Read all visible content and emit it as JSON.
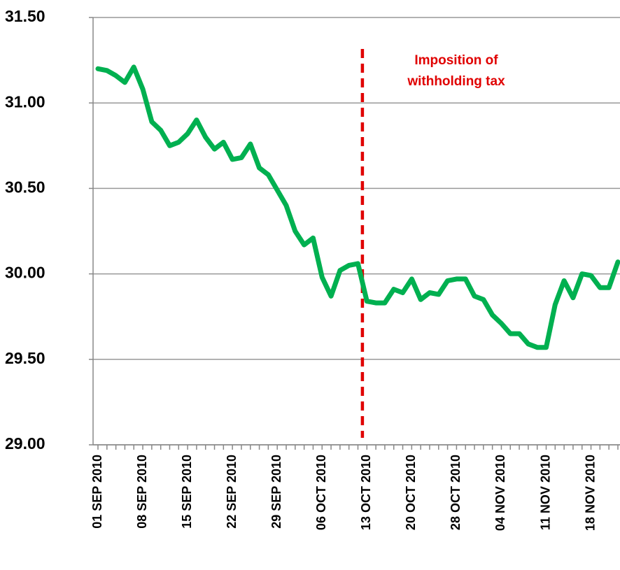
{
  "chart_data": {
    "type": "line",
    "categories": [
      "01 SEP 2010",
      null,
      null,
      null,
      null,
      "08 SEP 2010",
      null,
      null,
      null,
      null,
      "15 SEP 2010",
      null,
      null,
      null,
      null,
      "22 SEP 2010",
      null,
      null,
      null,
      null,
      "29 SEP 2010",
      null,
      null,
      null,
      null,
      "06 OCT 2010",
      null,
      null,
      null,
      null,
      "13 OCT 2010",
      null,
      null,
      null,
      null,
      "20 OCT 2010",
      null,
      null,
      null,
      null,
      "28 OCT 2010",
      null,
      null,
      null,
      null,
      "04 NOV 2010",
      null,
      null,
      null,
      null,
      "11 NOV 2010",
      null,
      null,
      null,
      null,
      "18 NOV 2010",
      null,
      null,
      null
    ],
    "series": [
      {
        "color": "#00b050",
        "values": [
          31.2,
          31.19,
          31.16,
          31.12,
          31.21,
          31.08,
          30.89,
          30.84,
          30.75,
          30.77,
          30.82,
          30.9,
          30.8,
          30.73,
          30.77,
          30.67,
          30.68,
          30.76,
          30.62,
          30.58,
          30.49,
          30.4,
          30.25,
          30.17,
          30.21,
          29.98,
          29.87,
          30.02,
          30.05,
          30.06,
          29.84,
          29.83,
          29.83,
          29.91,
          29.89,
          29.97,
          29.85,
          29.89,
          29.88,
          29.96,
          29.97,
          29.97,
          29.87,
          29.85,
          29.76,
          29.71,
          29.65,
          29.65,
          29.59,
          29.57,
          29.57,
          29.82,
          29.96,
          29.86,
          30.0,
          29.99,
          29.92,
          29.92,
          30.07
        ]
      }
    ],
    "ylim": [
      29,
      31.5
    ],
    "yticks": [
      {
        "value": 29,
        "label": "29.00"
      },
      {
        "value": 29.5,
        "label": "29.50"
      },
      {
        "value": 30,
        "label": "30.00"
      },
      {
        "value": 30.5,
        "label": "30.50"
      },
      {
        "value": 31,
        "label": "31.00"
      },
      {
        "value": 31.5,
        "label": "31.50"
      }
    ],
    "grid": true,
    "annotation": [
      "Imposition of",
      "withholding tax"
    ],
    "event_color": "#e00000"
  }
}
